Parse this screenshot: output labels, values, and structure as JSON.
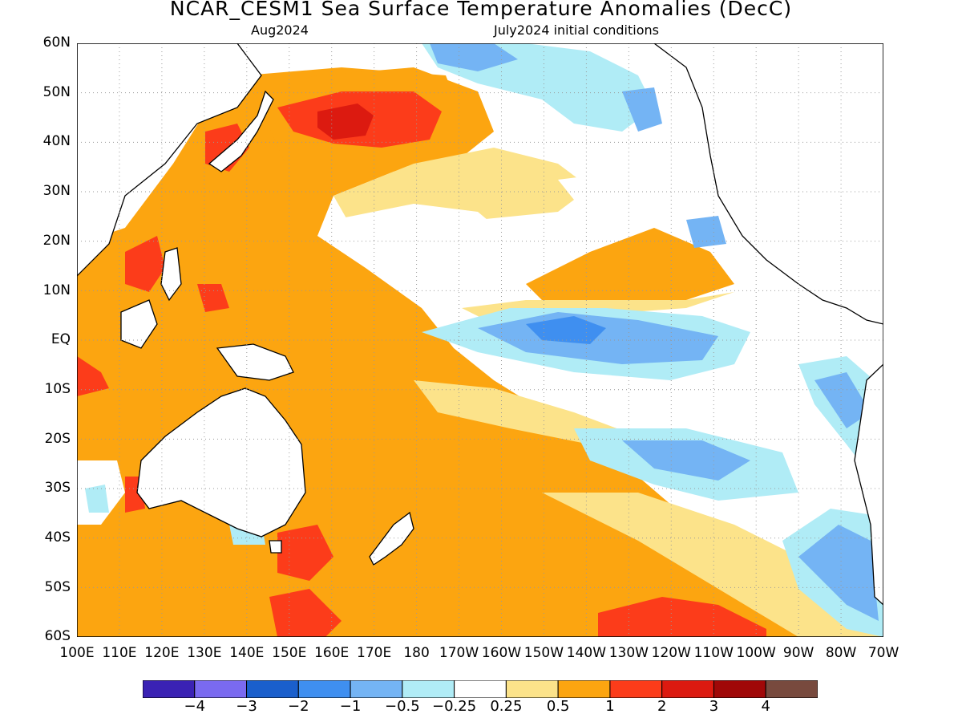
{
  "title": "NCAR_CESM1 Sea Surface Temperature Anomalies (DecC)",
  "subtitle_left": "Aug2024",
  "subtitle_right": "July2024 initial conditions",
  "y_labels": [
    "60N",
    "50N",
    "40N",
    "30N",
    "20N",
    "10N",
    "EQ",
    "10S",
    "20S",
    "30S",
    "40S",
    "50S",
    "60S"
  ],
  "x_labels": [
    "100E",
    "110E",
    "120E",
    "130E",
    "140E",
    "150E",
    "160E",
    "170E",
    "180",
    "170W",
    "160W",
    "150W",
    "140W",
    "130W",
    "120W",
    "110W",
    "100W",
    "90W",
    "80W",
    "70W"
  ],
  "colorbar": {
    "colors": [
      "#3a22b4",
      "#7a6af0",
      "#1a5fcc",
      "#3f8ff0",
      "#74b4f4",
      "#b0ecf6",
      "#ffffff",
      "#fce38a",
      "#fca510",
      "#fc3c1a",
      "#dc1a10",
      "#a00808",
      "#784a3e"
    ],
    "labels": [
      "−4",
      "−3",
      "−2",
      "−1",
      "−0.5",
      "−0.25",
      "0.25",
      "0.5",
      "1",
      "2",
      "3",
      "4"
    ]
  }
}
